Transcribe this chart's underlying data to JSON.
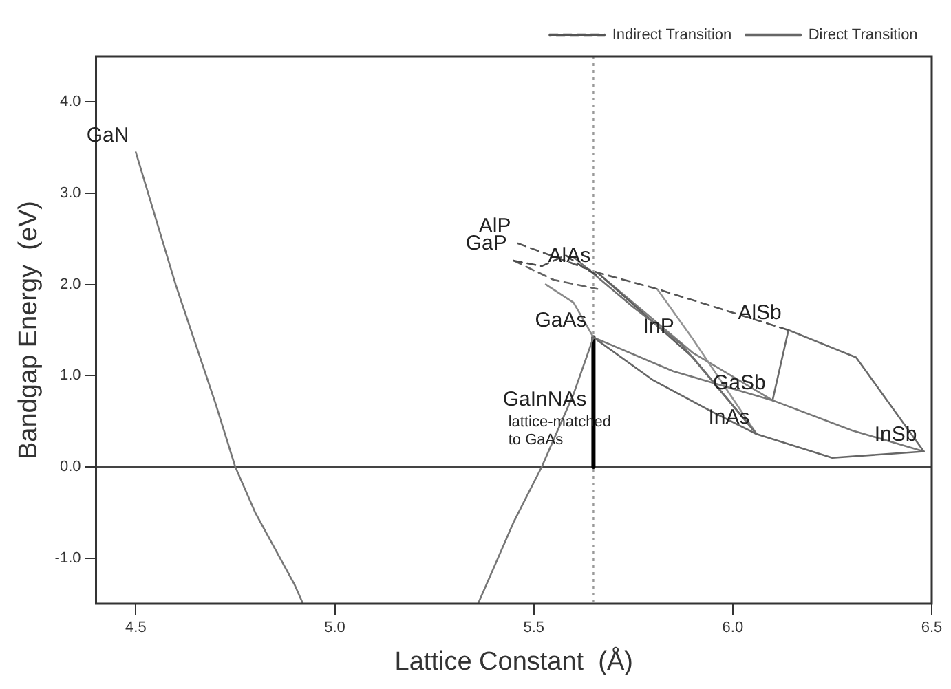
{
  "chart_data": {
    "type": "line",
    "xlabel": "Lattice Constant  (Å)",
    "ylabel": "Bandgap Energy  (eV)",
    "xlim": [
      4.4,
      6.5
    ],
    "ylim": [
      -1.5,
      4.5
    ],
    "xticks": [
      {
        "value": 4.5,
        "label": "4.5"
      },
      {
        "value": 5,
        "label": "5.0"
      },
      {
        "value": 5.5,
        "label": "5.5"
      },
      {
        "value": 6,
        "label": "6.0"
      },
      {
        "value": 6.5,
        "label": "6.5"
      }
    ],
    "yticks": [
      {
        "value": -1,
        "label": "-1.0"
      },
      {
        "value": 0,
        "label": "0.0"
      },
      {
        "value": 1,
        "label": "1.0"
      },
      {
        "value": 2,
        "label": "2.0"
      },
      {
        "value": 3,
        "label": "3.0"
      },
      {
        "value": 4,
        "label": "4.0"
      }
    ],
    "grid": false,
    "legend": "top right",
    "marker": "none",
    "series": [
      {
        "name": "Indirect Transition",
        "color": "#555555",
        "line_style": "dashed",
        "x": [
          5.46,
          5.66,
          5.81,
          6.14
        ],
        "values": [
          2.45,
          2.13,
          1.95,
          1.5
        ]
      },
      {
        "name": "Direct Transition",
        "color": "#666666",
        "line_style": "solid",
        "x": [
          5.65,
          5.8,
          5.95,
          6.06,
          6.25,
          6.48
        ],
        "values": [
          1.42,
          0.95,
          0.6,
          0.36,
          0.1,
          0.17
        ]
      },
      {
        "color": "#4a4a4a",
        "line_style": "dashed",
        "x": [
          5.45,
          5.52,
          5.58,
          5.62,
          5.66
        ],
        "values": [
          2.26,
          2.2,
          2.32,
          2.2,
          2.1
        ]
      },
      {
        "color": "#626262",
        "line_style": "dashed",
        "x": [
          5.45,
          5.55,
          5.66
        ],
        "values": [
          2.26,
          2.05,
          1.95
        ]
      },
      {
        "color": "#777777",
        "line_style": "solid",
        "x": [
          4.5,
          4.6,
          4.7,
          4.75,
          4.8,
          4.9,
          4.92
        ],
        "values": [
          3.45,
          2.0,
          0.7,
          0,
          -0.5,
          -1.3,
          -1.5
        ]
      },
      {
        "color": "#777777",
        "line_style": "solid",
        "x": [
          5.36,
          5.45,
          5.52,
          5.6,
          5.65,
          5.85,
          6.1,
          6.3,
          6.48
        ],
        "values": [
          -1.5,
          -0.6,
          0,
          0.8,
          1.42,
          1.05,
          0.73,
          0.4,
          0.17
        ]
      },
      {
        "color": "#8a8a8a",
        "line_style": "solid",
        "x": [
          5.53,
          5.6,
          5.65
        ],
        "values": [
          2.0,
          1.8,
          1.42
        ]
      },
      {
        "color": "#707070",
        "line_style": "solid",
        "x": [
          5.6,
          5.75,
          5.87,
          6.06
        ],
        "values": [
          2.3,
          1.75,
          1.35,
          0.36
        ]
      },
      {
        "color": "#5e5e5e",
        "line_style": "solid",
        "x": [
          5.66,
          5.9,
          6.06
        ],
        "values": [
          2.13,
          1.2,
          0.36
        ]
      },
      {
        "color": "#949494",
        "line_style": "solid",
        "x": [
          5.81,
          5.9,
          6.06
        ],
        "values": [
          1.95,
          1.4,
          0.36
        ]
      },
      {
        "color": "#7f7f7f",
        "line_style": "solid",
        "x": [
          5.66,
          5.9,
          6.1
        ],
        "values": [
          2.13,
          1.25,
          0.73
        ]
      },
      {
        "color": "#6a6a6a",
        "line_style": "solid",
        "x": [
          6.1,
          6.14,
          6.31,
          6.48
        ],
        "values": [
          0.73,
          1.5,
          1.2,
          0.17
        ]
      },
      {
        "color": "#000000",
        "line_style": "solid",
        "x": [
          5.65,
          5.65
        ],
        "values": [
          0,
          1.42
        ]
      }
    ],
    "ref_lines": [
      {
        "axis": "y",
        "value": 0,
        "color": "#444444",
        "line_style": "solid"
      },
      {
        "axis": "x",
        "value": 5.65,
        "color": "#999999",
        "line_style": "dotted"
      }
    ],
    "annotations": [
      {
        "text": "GaN",
        "x": 4.5,
        "y": 3.45
      },
      {
        "text": "AlP",
        "x": 5.46,
        "y": 2.45
      },
      {
        "text": "GaP",
        "x": 5.45,
        "y": 2.26
      },
      {
        "text": "AlAs",
        "x": 5.66,
        "y": 2.13
      },
      {
        "text": "GaAs",
        "x": 5.65,
        "y": 1.42
      },
      {
        "text": "InP",
        "x": 5.87,
        "y": 1.35
      },
      {
        "text": "AlSb",
        "x": 6.14,
        "y": 1.5
      },
      {
        "text": "GaSb",
        "x": 6.1,
        "y": 0.73
      },
      {
        "text": "InAs",
        "x": 6.06,
        "y": 0.36
      },
      {
        "text": "InSb",
        "x": 6.48,
        "y": 0.17
      },
      {
        "text": "GaInNAs",
        "x": 5.65,
        "y": 0.55
      },
      "lattice-matched to GaAs"
    ]
  }
}
